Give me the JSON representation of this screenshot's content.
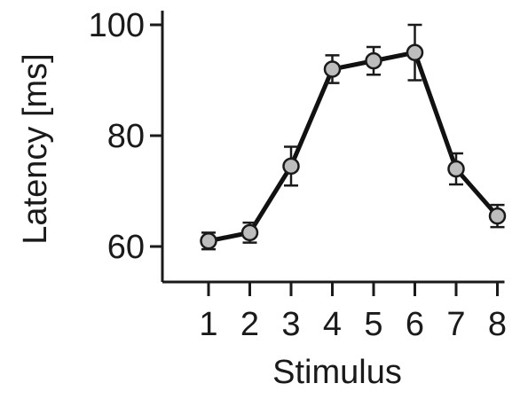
{
  "chart_data": {
    "type": "line",
    "title": "",
    "xlabel": "Stimulus",
    "ylabel": "Latency [ms]",
    "categories": [
      "1",
      "2",
      "3",
      "4",
      "5",
      "6",
      "7",
      "8"
    ],
    "ylim": [
      53,
      100
    ],
    "yticks": [
      60,
      80,
      100
    ],
    "ytick_labels": [
      "60",
      "80",
      "100"
    ],
    "grid": false,
    "legend": "none",
    "series": [
      {
        "values": [
          61,
          62.5,
          74.5,
          92,
          93.5,
          95,
          74,
          65.5
        ],
        "error": [
          1.5,
          1.8,
          3.5,
          2.5,
          2.5,
          5.0,
          2.8,
          2.0
        ],
        "color": "#111111",
        "marker_color": "#bdbdbd"
      }
    ]
  }
}
